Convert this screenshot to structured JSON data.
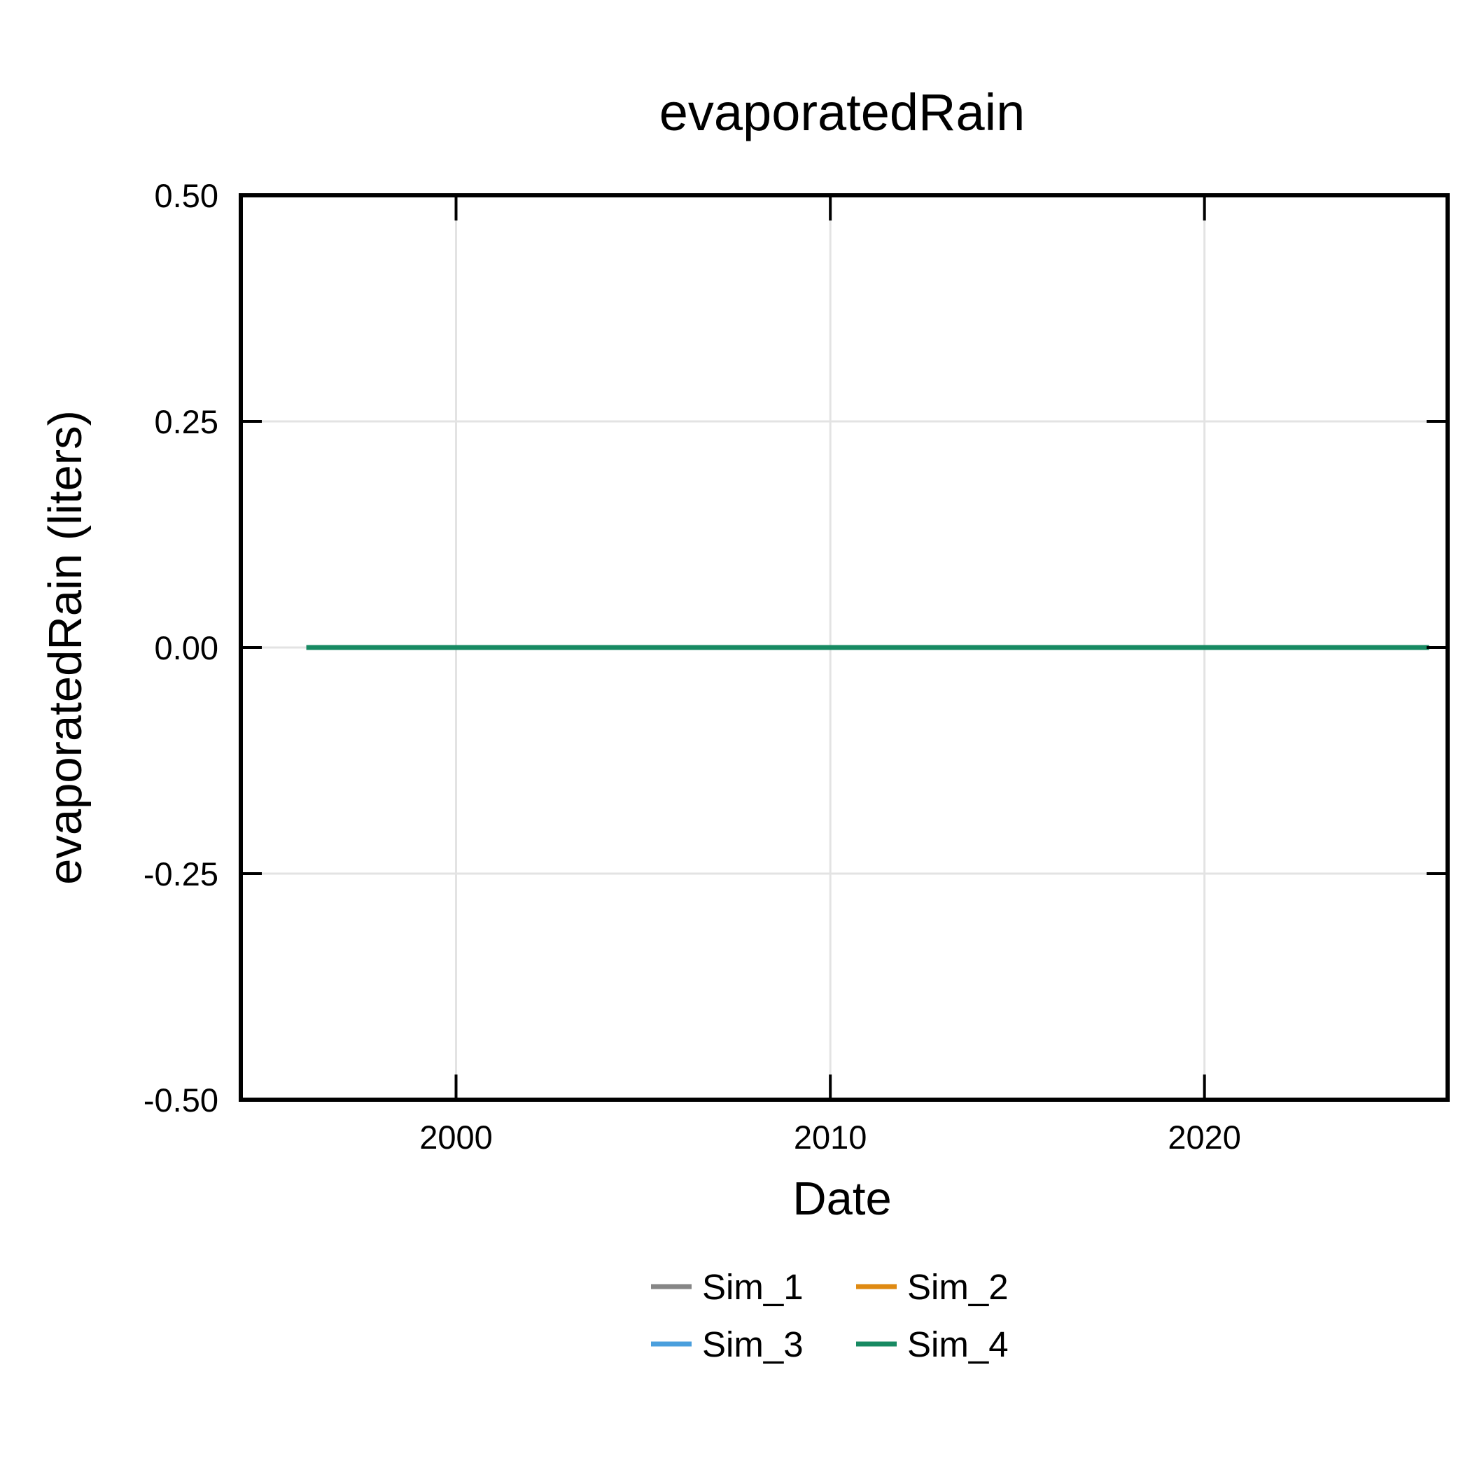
{
  "chart_data": {
    "type": "line",
    "title": "evaporatedRain",
    "xlabel": "Date",
    "ylabel": "evaporatedRain (liters)",
    "x_ticks": [
      "2000",
      "2010",
      "2020"
    ],
    "y_ticks": [
      "0.50",
      "0.25",
      "0.00",
      "-0.25",
      "-0.50"
    ],
    "xlim": [
      "1994-04-01",
      "2026-07-01"
    ],
    "ylim": [
      -0.5,
      0.5
    ],
    "grid": true,
    "legend_position": "bottom",
    "series": [
      {
        "name": "Sim_1",
        "color": "#868686",
        "x": [
          "1996-01-01",
          "2026-01-01"
        ],
        "y": [
          0,
          0
        ]
      },
      {
        "name": "Sim_2",
        "color": "#df8a12",
        "x": [
          "1996-01-01",
          "2026-01-01"
        ],
        "y": [
          0,
          0
        ]
      },
      {
        "name": "Sim_3",
        "color": "#4a9fdd",
        "x": [
          "1996-01-01",
          "2026-01-01"
        ],
        "y": [
          0,
          0
        ]
      },
      {
        "name": "Sim_4",
        "color": "#178a62",
        "x": [
          "1996-01-01",
          "2026-01-01"
        ],
        "y": [
          0,
          0
        ]
      }
    ]
  }
}
